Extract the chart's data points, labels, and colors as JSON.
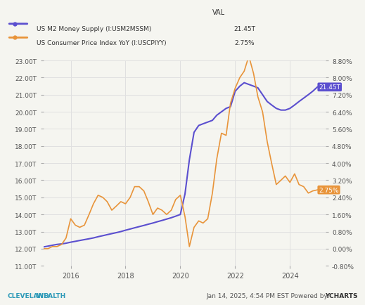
{
  "title_val": "VAL",
  "legend": [
    {
      "label": "US M2 Money Supply (I:USM2MSSM)",
      "val": "21.45T",
      "color": "#5b4fcf"
    },
    {
      "label": "US Consumer Price Index YoY (I:USCPIYY)",
      "val": "2.75%",
      "color": "#e8943a"
    }
  ],
  "m2_left_ticks": [
    "23.00T",
    "22.00T",
    "21.00T",
    "20.00T",
    "19.00T",
    "18.00T",
    "17.00T",
    "16.00T",
    "15.00T",
    "14.00T",
    "13.00T",
    "12.00T",
    "11.00T"
  ],
  "m2_left_values": [
    23000,
    22000,
    21000,
    20000,
    19000,
    18000,
    17000,
    16000,
    15000,
    14000,
    13000,
    12000,
    11000
  ],
  "cpi_right_ticks": [
    "8.80%",
    "8.00%",
    "7.20%",
    "6.40%",
    "5.60%",
    "4.80%",
    "4.00%",
    "3.20%",
    "2.40%",
    "1.60%",
    "0.80%",
    "0.00%",
    "-0.80%"
  ],
  "cpi_right_values": [
    8.8,
    8.0,
    7.2,
    6.4,
    5.6,
    4.8,
    4.0,
    3.2,
    2.4,
    1.6,
    0.8,
    0.0,
    -0.8
  ],
  "x_ticks": [
    "2016",
    "2018",
    "2020",
    "2022",
    "2024"
  ],
  "background_color": "#f5f5f0",
  "grid_color": "#e0e0e0",
  "m2_color": "#5b4fcf",
  "cpi_color": "#e8943a",
  "annotation_m2": {
    "text": "21.45T",
    "color": "#5b4fcf"
  },
  "annotation_cpi": {
    "text": "2.75%",
    "color": "#e8943a"
  },
  "footer_left": "CLEVELAND WEALTH",
  "footer_right": "Jan 14, 2025, 4:54 PM EST Powered by YCHARTS",
  "m2_data": {
    "years": [
      2015.0,
      2015.17,
      2015.33,
      2015.5,
      2015.67,
      2015.83,
      2016.0,
      2016.17,
      2016.33,
      2016.5,
      2016.67,
      2016.83,
      2017.0,
      2017.17,
      2017.33,
      2017.5,
      2017.67,
      2017.83,
      2018.0,
      2018.17,
      2018.33,
      2018.5,
      2018.67,
      2018.83,
      2019.0,
      2019.17,
      2019.33,
      2019.5,
      2019.67,
      2019.83,
      2020.0,
      2020.17,
      2020.33,
      2020.5,
      2020.67,
      2020.83,
      2021.0,
      2021.17,
      2021.33,
      2021.5,
      2021.67,
      2021.83,
      2022.0,
      2022.17,
      2022.33,
      2022.5,
      2022.67,
      2022.83,
      2023.0,
      2023.17,
      2023.33,
      2023.5,
      2023.67,
      2023.83,
      2024.0,
      2024.17,
      2024.33,
      2024.5,
      2024.67,
      2024.83,
      2025.0
    ],
    "values": [
      12100,
      12150,
      12200,
      12250,
      12280,
      12320,
      12380,
      12430,
      12480,
      12530,
      12580,
      12630,
      12700,
      12760,
      12820,
      12880,
      12940,
      13000,
      13080,
      13150,
      13220,
      13290,
      13360,
      13430,
      13500,
      13580,
      13650,
      13730,
      13810,
      13900,
      14000,
      15200,
      17200,
      18800,
      19200,
      19300,
      19400,
      19500,
      19800,
      20000,
      20200,
      20300,
      21200,
      21500,
      21700,
      21600,
      21500,
      21400,
      21000,
      20600,
      20400,
      20200,
      20100,
      20100,
      20200,
      20400,
      20600,
      20800,
      21000,
      21200,
      21450
    ]
  },
  "cpi_data": {
    "years": [
      2015.0,
      2015.17,
      2015.33,
      2015.5,
      2015.67,
      2015.83,
      2016.0,
      2016.17,
      2016.33,
      2016.5,
      2016.67,
      2016.83,
      2017.0,
      2017.17,
      2017.33,
      2017.5,
      2017.67,
      2017.83,
      2018.0,
      2018.17,
      2018.33,
      2018.5,
      2018.67,
      2018.83,
      2019.0,
      2019.17,
      2019.33,
      2019.5,
      2019.67,
      2019.83,
      2020.0,
      2020.17,
      2020.33,
      2020.5,
      2020.67,
      2020.83,
      2021.0,
      2021.17,
      2021.33,
      2021.5,
      2021.67,
      2021.83,
      2022.0,
      2022.17,
      2022.33,
      2022.5,
      2022.67,
      2022.83,
      2023.0,
      2023.17,
      2023.33,
      2023.5,
      2023.67,
      2023.83,
      2024.0,
      2024.17,
      2024.33,
      2024.5,
      2024.67,
      2024.83,
      2025.0
    ],
    "values": [
      0.0,
      0.0,
      0.1,
      0.1,
      0.2,
      0.5,
      1.4,
      1.1,
      1.0,
      1.1,
      1.6,
      2.1,
      2.5,
      2.4,
      2.2,
      1.8,
      2.0,
      2.2,
      2.1,
      2.4,
      2.9,
      2.9,
      2.7,
      2.2,
      1.6,
      1.9,
      1.8,
      1.6,
      1.8,
      2.3,
      2.5,
      1.5,
      0.1,
      1.0,
      1.3,
      1.2,
      1.4,
      2.6,
      4.2,
      5.4,
      5.3,
      6.8,
      7.5,
      8.0,
      8.3,
      9.0,
      8.2,
      7.1,
      6.4,
      5.0,
      4.0,
      3.0,
      3.2,
      3.4,
      3.1,
      3.5,
      3.0,
      2.9,
      2.6,
      2.7,
      2.75
    ]
  }
}
